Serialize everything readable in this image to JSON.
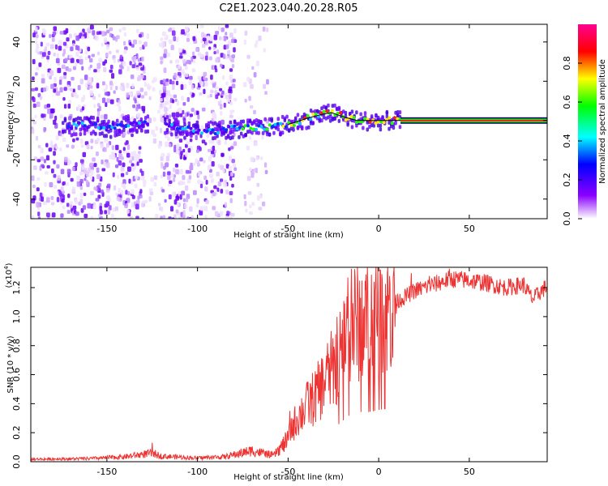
{
  "title": "C2E1.2023.040.20.28.R05",
  "colors": {
    "snr_line": "#ee3333",
    "trace_line": "#000000"
  },
  "chart_data": [
    {
      "type": "heatmap",
      "xlabel": "Height of straight line (km)",
      "ylabel": "Frequency (Hz)",
      "xlim": [
        -192,
        93
      ],
      "ylim": [
        -50,
        49
      ],
      "xticks": [
        "-150",
        "-100",
        "-50",
        "0",
        "50"
      ],
      "xtick_values": [
        -150,
        -100,
        -50,
        0,
        50
      ],
      "yticks": [
        "-40",
        "-20",
        "0",
        "20",
        "40"
      ],
      "ytick_values": [
        -40,
        -20,
        0,
        20,
        40
      ],
      "center_track": [
        [
          -172,
          -3
        ],
        [
          -160,
          -2
        ],
        [
          -150,
          -4
        ],
        [
          -140,
          -2
        ],
        [
          -128,
          -1
        ],
        [
          -120,
          -2
        ],
        [
          -110,
          -4
        ],
        [
          -100,
          -6
        ],
        [
          -88,
          -5
        ],
        [
          -78,
          -4
        ],
        [
          -68,
          -4
        ],
        [
          -60,
          -3
        ],
        [
          -50,
          -2
        ],
        [
          -40,
          1
        ],
        [
          -32,
          3
        ],
        [
          -26,
          4
        ],
        [
          -20,
          2
        ],
        [
          -12,
          0
        ],
        [
          -5,
          0
        ],
        [
          2,
          0
        ],
        [
          12,
          0
        ],
        [
          93,
          0
        ]
      ],
      "colorbar": {
        "label": "Normalized spectral amplitude",
        "range": [
          0,
          1
        ],
        "ticks": [
          "0.0",
          "0.2",
          "0.4",
          "0.6",
          "0.8"
        ],
        "tick_values": [
          0,
          0.2,
          0.4,
          0.6,
          0.8
        ]
      }
    },
    {
      "type": "line",
      "xlabel": "Height of straight line (km)",
      "ylabel": "SNR (10 * v/v)",
      "scale_label": "(x10",
      "scale_exp": "4",
      "scale_close": ")",
      "xlim": [
        -192,
        93
      ],
      "ylim": [
        0,
        13400
      ],
      "xticks": [
        "-150",
        "-100",
        "-50",
        "0",
        "50"
      ],
      "xtick_values": [
        -150,
        -100,
        -50,
        0,
        50
      ],
      "yticks": [
        "0.0",
        "0.2",
        "0.4",
        "0.6",
        "0.8",
        "1.0",
        "1.2"
      ],
      "ytick_values": [
        0,
        2000,
        4000,
        6000,
        8000,
        10000,
        12000
      ],
      "series": [
        {
          "envelope": [
            [
              -192,
              200
            ],
            [
              -160,
              250
            ],
            [
              -140,
              400
            ],
            [
              -125,
              700
            ],
            [
              -120,
              450
            ],
            [
              -100,
              300
            ],
            [
              -85,
              400
            ],
            [
              -70,
              900
            ],
            [
              -58,
              500
            ],
            [
              -50,
              1800
            ],
            [
              -45,
              3000
            ],
            [
              -40,
              3800
            ],
            [
              -35,
              4500
            ],
            [
              -30,
              5500
            ],
            [
              -25,
              6500
            ],
            [
              -20,
              8000
            ],
            [
              -15,
              9500
            ],
            [
              -10,
              9800
            ],
            [
              -5,
              9800
            ],
            [
              0,
              10200
            ],
            [
              5,
              10500
            ],
            [
              10,
              11000
            ],
            [
              20,
              11800
            ],
            [
              30,
              12200
            ],
            [
              40,
              12600
            ],
            [
              50,
              12500
            ],
            [
              60,
              12300
            ],
            [
              70,
              12000
            ],
            [
              80,
              12200
            ],
            [
              85,
              11200
            ],
            [
              90,
              11800
            ],
            [
              93,
              12100
            ]
          ],
          "spikes": [
            [
              -125,
              1300
            ],
            [
              -49,
              3500
            ],
            [
              -40,
              4800
            ],
            [
              -28,
              6800
            ],
            [
              -20,
              9800
            ],
            [
              -17,
              12700
            ],
            [
              -15,
              13300
            ],
            [
              -14,
              10000
            ],
            [
              -10,
              11300
            ],
            [
              -2,
              11800
            ],
            [
              3,
              10800
            ],
            [
              8,
              12700
            ],
            [
              18,
              13000
            ],
            [
              28,
              12800
            ],
            [
              39,
              13300
            ]
          ]
        }
      ]
    }
  ]
}
